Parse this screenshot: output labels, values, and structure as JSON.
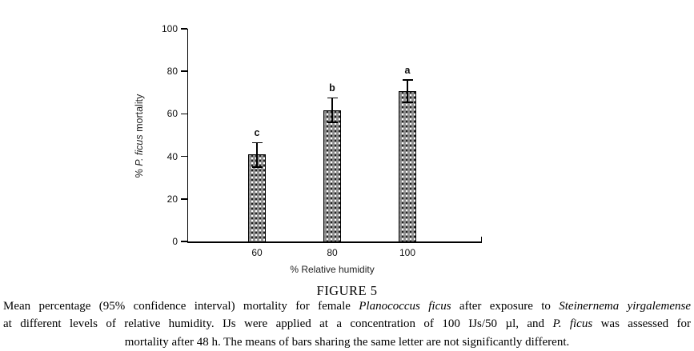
{
  "figure_label": "FIGURE 5",
  "caption": {
    "full_text": "Mean percentage (95% confidence interval) mortality for female Planococcus ficus after exposure to Steinernema yirgalemense at different levels of relative humidity. IJs were applied at a concentration of 100 IJs/50 µl, and P. ficus was assessed for mortality after 48 h. The means of bars sharing the same letter are not significantly different.",
    "lines": [
      {
        "align": "justify",
        "segments": [
          {
            "text": "Mean percentage (95% confidence interval) mortality for female "
          },
          {
            "text": "Planococcus ficus",
            "italic": true
          },
          {
            "text": " after exposure to "
          },
          {
            "text": "Steinernema yirgalemense",
            "italic": true
          }
        ]
      },
      {
        "align": "justify",
        "segments": [
          {
            "text": "at different levels of relative humidity. IJs were applied at a concentration of 100 IJs/50 µl, and "
          },
          {
            "text": "P. ficus",
            "italic": true
          },
          {
            "text": " was assessed for"
          }
        ]
      },
      {
        "align": "center",
        "segments": [
          {
            "text": "mortality after 48 h. The means of bars sharing the same letter are not significantly different."
          }
        ]
      }
    ]
  },
  "chart_data": {
    "type": "bar",
    "title": "",
    "xlabel": "% Relative humidity",
    "ylabel": "% P. ficus mortality",
    "ylabel_segments": [
      {
        "text": "% "
      },
      {
        "text": "P. ficus",
        "italic": true
      },
      {
        "text": " mortality"
      }
    ],
    "categories": [
      "60",
      "80",
      "100"
    ],
    "values": [
      41,
      61.5,
      70.5
    ],
    "error_high": [
      46.5,
      67.5,
      76
    ],
    "error_low": [
      35,
      56,
      65.5
    ],
    "sig_letters": [
      "c",
      "b",
      "a"
    ],
    "ylim": [
      0,
      100
    ],
    "yticks": [
      0,
      20,
      40,
      60,
      80,
      100
    ],
    "grid": false,
    "legend": null,
    "bar_fill_color": "#8e8e8e",
    "bar_pattern": "stipple dots (white and black) on gray",
    "bar_border_color": "#000000",
    "axis_color": "#000000"
  }
}
